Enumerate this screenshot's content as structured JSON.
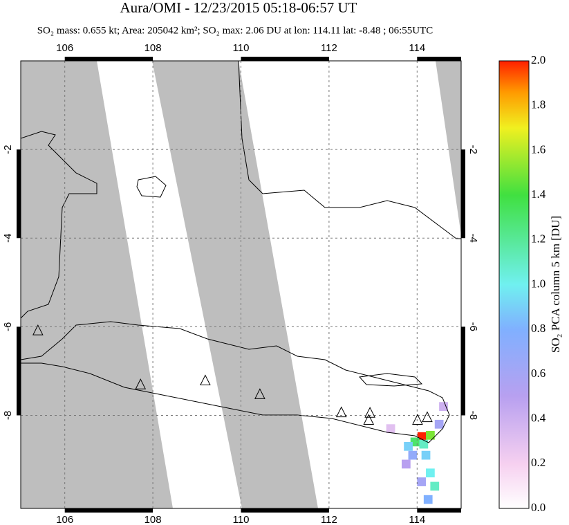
{
  "header": {
    "title": "Aura/OMI - 12/23/2015 05:18-06:57 UT",
    "subtitle": "SO₂ mass: 0.655 kt; Area: 205042 km²; SO₂ max: 2.06 DU at lon: 114.11 lat: -8.48 ; 06:55UTC"
  },
  "map": {
    "xlim": [
      105,
      115
    ],
    "ylim": [
      -10.1,
      0
    ],
    "xticks": [
      106,
      108,
      110,
      112,
      114
    ],
    "yticks": [
      -2,
      -4,
      -6,
      -8
    ],
    "grid": true,
    "volcanoes": {
      "lon": [
        105.39,
        107.72,
        109.19,
        110.43,
        112.28,
        112.93,
        112.9,
        114.01,
        114.23
      ],
      "lat": [
        -6.09,
        -7.31,
        -7.22,
        -7.53,
        -7.94,
        -7.95,
        -8.11,
        -8.11,
        -8.05
      ]
    },
    "so2_pixels": {
      "lon": [
        114.11,
        113.95,
        114.15,
        114.3,
        113.8,
        113.9,
        114.2,
        114.3,
        114.4,
        114.1,
        113.75,
        114.5,
        114.6,
        113.4,
        114.25
      ],
      "lat": [
        -8.48,
        -8.6,
        -8.65,
        -8.45,
        -8.7,
        -8.9,
        -8.9,
        -9.3,
        -9.6,
        -9.5,
        -9.1,
        -8.2,
        -7.8,
        -8.3,
        -9.9
      ],
      "values": [
        2.06,
        1.3,
        1.1,
        1.5,
        0.9,
        0.7,
        0.9,
        1.0,
        1.1,
        0.6,
        0.5,
        0.6,
        0.4,
        0.3,
        0.8
      ]
    }
  },
  "colorbar": {
    "label": "SO₂ PCA column 5 km [DU]",
    "lim": [
      0,
      2
    ],
    "ticks": [
      {
        "value": 0,
        "label": "0.0"
      },
      0.2,
      0.4,
      0.6,
      0.8,
      {
        "value": 1,
        "label": "1.0"
      },
      1.2,
      1.4,
      1.6,
      1.8,
      {
        "value": 2,
        "label": "2.0"
      }
    ]
  }
}
